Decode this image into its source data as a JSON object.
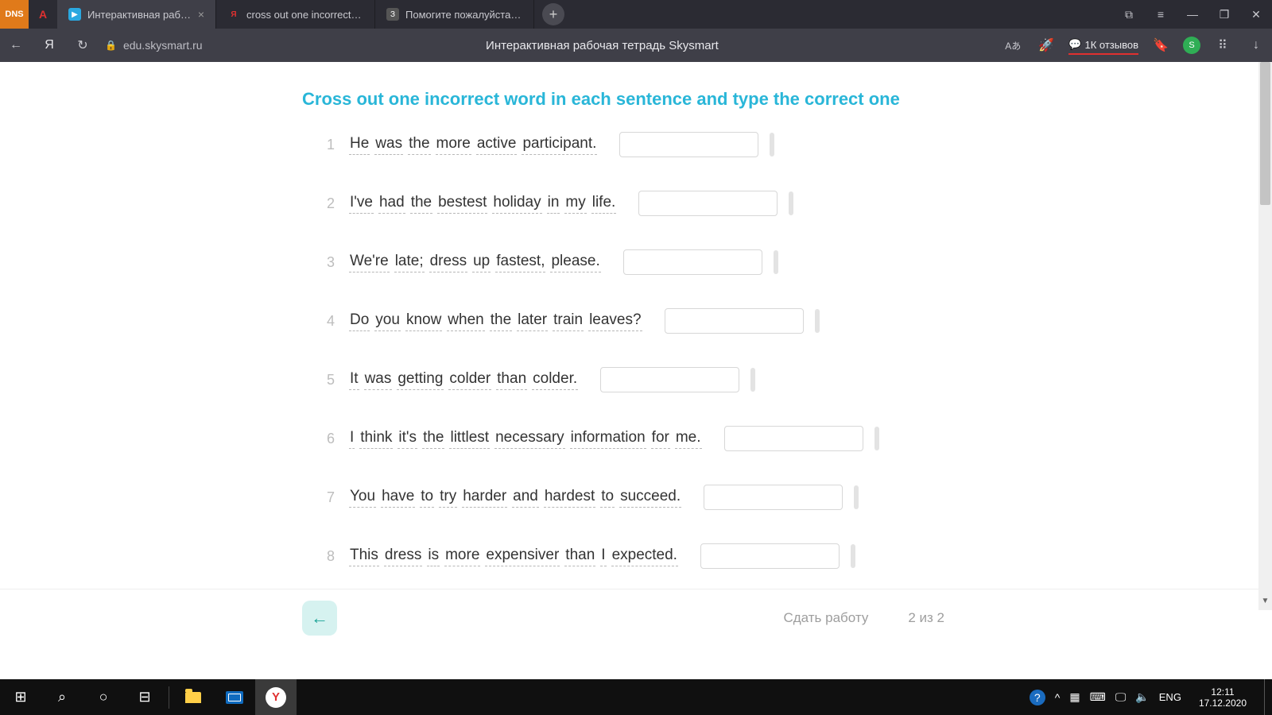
{
  "tabs": [
    {
      "fav": "dns",
      "label": ""
    },
    {
      "fav": "A",
      "label": ""
    },
    {
      "fav": "sky",
      "label": "Интерактивная рабоча",
      "active": true,
      "close": true
    },
    {
      "fav": "Я",
      "label": "cross out one incorrect wo"
    },
    {
      "fav": "З",
      "label": "Помогите пожалуйста ре"
    }
  ],
  "window": {
    "copy": "⧉",
    "menu": "≡",
    "min": "—",
    "max": "❐",
    "close": "✕"
  },
  "addr": {
    "back": "←",
    "home": "Я",
    "reload": "↻",
    "lock": "🔒",
    "url": "edu.skysmart.ru",
    "title": "Интерактивная рабочая тетрадь Skysmart",
    "tr": "Aあ",
    "rocket": "🚀",
    "reviews": "1К отзывов",
    "bm": "🔖",
    "shield": "S",
    "ext": "⠿",
    "dl": "↓"
  },
  "exercise": {
    "instruction": "Cross out one incorrect word in each sentence and type the correct one",
    "items": [
      {
        "n": "1",
        "w": [
          "He",
          "was",
          "the",
          "more",
          "active",
          "participant."
        ]
      },
      {
        "n": "2",
        "w": [
          "I've",
          "had",
          "the",
          "bestest",
          "holiday",
          "in",
          "my",
          "life."
        ]
      },
      {
        "n": "3",
        "w": [
          "We're",
          "late;",
          "dress",
          "up",
          "fastest,",
          "please."
        ]
      },
      {
        "n": "4",
        "w": [
          "Do",
          "you",
          "know",
          "when",
          "the",
          "later",
          "train",
          "leaves?"
        ]
      },
      {
        "n": "5",
        "w": [
          "It",
          "was",
          "getting",
          "colder",
          "than",
          "colder."
        ]
      },
      {
        "n": "6",
        "w": [
          "I",
          "think",
          "it's",
          "the",
          "littlest",
          "necessary",
          "information",
          "for",
          "me."
        ]
      },
      {
        "n": "7",
        "w": [
          "You",
          "have",
          "to",
          "try",
          "harder",
          "and",
          "hardest",
          "to",
          "succeed."
        ]
      },
      {
        "n": "8",
        "w": [
          "This",
          "dress",
          "is",
          "more",
          "expensiver",
          "than",
          "I",
          "expected."
        ]
      }
    ]
  },
  "footer": {
    "back": "←",
    "submit": "Сдать работу",
    "page": "2 из 2"
  },
  "task": {
    "win": "⊞",
    "search": "⌕",
    "cortana": "○",
    "tasks": "⊟"
  },
  "tray": {
    "help": "?",
    "up": "^",
    "bat": "▦",
    "net": "⌨",
    "disp": "🖵",
    "vol": "🔈",
    "lang": "ENG",
    "time": "12:11",
    "date": "17.12.2020"
  }
}
